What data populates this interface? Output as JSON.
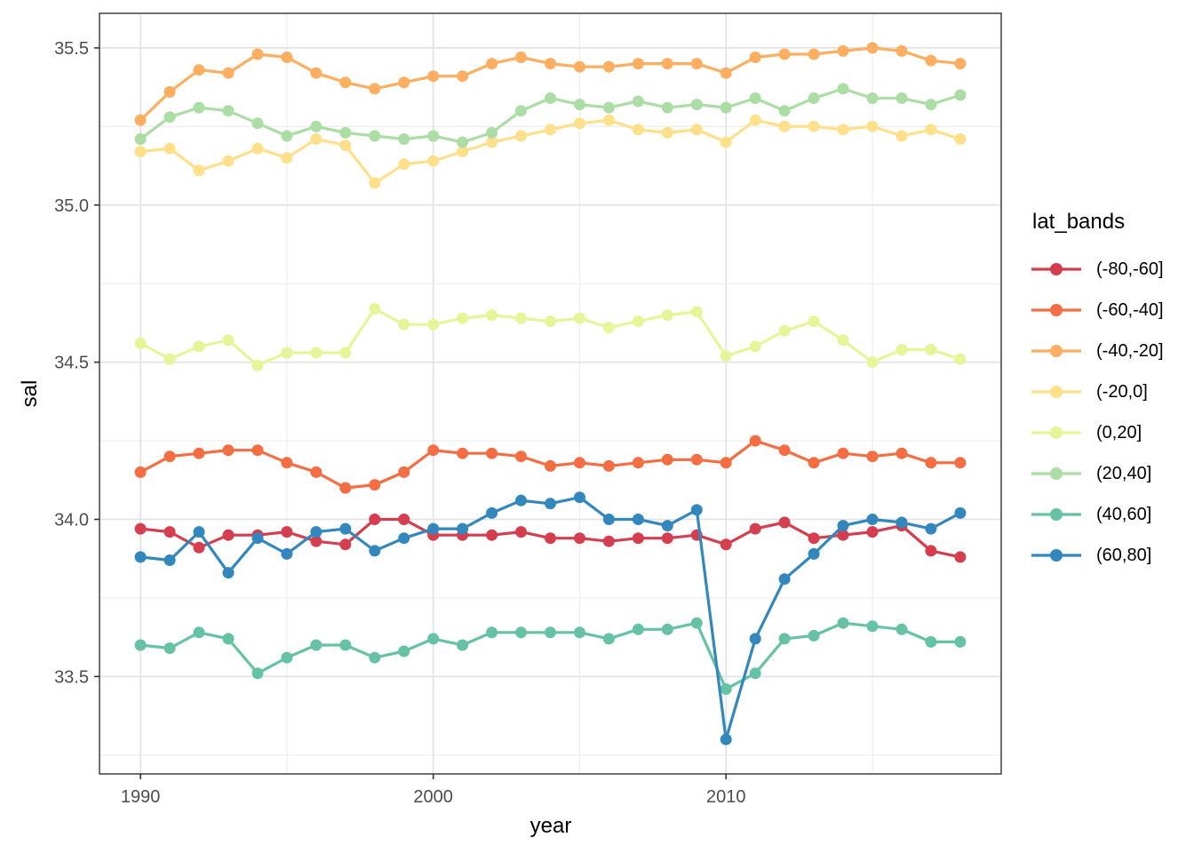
{
  "figure": {
    "background": "#ffffff"
  },
  "chart_data": {
    "type": "line",
    "title": "",
    "xlabel": "year",
    "ylabel": "sal",
    "legend_title": "lat_bands",
    "legend_position": "right",
    "grid": true,
    "xlim": [
      1988.6,
      2019.4
    ],
    "ylim": [
      33.19,
      35.61
    ],
    "x_ticks": [
      {
        "value": 1990,
        "label": "1990"
      },
      {
        "value": 2000,
        "label": "2000"
      },
      {
        "value": 2010,
        "label": "2010"
      }
    ],
    "x_minor_ticks": [
      1995,
      2005,
      2015
    ],
    "y_ticks": [
      {
        "value": 33.5,
        "label": "33.5"
      },
      {
        "value": 34.0,
        "label": "34.0"
      },
      {
        "value": 34.5,
        "label": "34.5"
      },
      {
        "value": 35.0,
        "label": "35.0"
      },
      {
        "value": 35.5,
        "label": "35.5"
      }
    ],
    "y_minor_ticks": [
      33.25,
      33.75,
      34.25,
      34.75,
      35.25
    ],
    "x": [
      1990,
      1991,
      1992,
      1993,
      1994,
      1995,
      1996,
      1997,
      1998,
      1999,
      2000,
      2001,
      2002,
      2003,
      2004,
      2005,
      2006,
      2007,
      2008,
      2009,
      2010,
      2011,
      2012,
      2013,
      2014,
      2015,
      2016,
      2017,
      2018
    ],
    "series": [
      {
        "name": "(-80,-60]",
        "color": "#D53E4F",
        "values": [
          33.97,
          33.96,
          33.91,
          33.95,
          33.95,
          33.96,
          33.93,
          33.92,
          34.0,
          34.0,
          33.95,
          33.95,
          33.95,
          33.96,
          33.94,
          33.94,
          33.93,
          33.94,
          33.94,
          33.95,
          33.92,
          33.97,
          33.99,
          33.94,
          33.95,
          33.96,
          33.98,
          33.9,
          33.88
        ]
      },
      {
        "name": "(-60,-40]",
        "color": "#F46D43",
        "values": [
          34.15,
          34.2,
          34.21,
          34.22,
          34.22,
          34.18,
          34.15,
          34.1,
          34.11,
          34.15,
          34.22,
          34.21,
          34.21,
          34.2,
          34.17,
          34.18,
          34.17,
          34.18,
          34.19,
          34.19,
          34.18,
          34.25,
          34.22,
          34.18,
          34.21,
          34.2,
          34.21,
          34.18,
          34.18
        ]
      },
      {
        "name": "(-40,-20]",
        "color": "#FDAE61",
        "values": [
          35.27,
          35.36,
          35.43,
          35.42,
          35.48,
          35.47,
          35.42,
          35.39,
          35.37,
          35.39,
          35.41,
          35.41,
          35.45,
          35.47,
          35.45,
          35.44,
          35.44,
          35.45,
          35.45,
          35.45,
          35.42,
          35.47,
          35.48,
          35.48,
          35.49,
          35.5,
          35.49,
          35.46,
          35.45
        ]
      },
      {
        "name": "(-20,0]",
        "color": "#FEE08B",
        "values": [
          35.17,
          35.18,
          35.11,
          35.14,
          35.18,
          35.15,
          35.21,
          35.19,
          35.07,
          35.13,
          35.14,
          35.17,
          35.2,
          35.22,
          35.24,
          35.26,
          35.27,
          35.24,
          35.23,
          35.24,
          35.2,
          35.27,
          35.25,
          35.25,
          35.24,
          35.25,
          35.22,
          35.24,
          35.21
        ]
      },
      {
        "name": "(0,20]",
        "color": "#E6F598",
        "values": [
          34.56,
          34.51,
          34.55,
          34.57,
          34.49,
          34.53,
          34.53,
          34.53,
          34.67,
          34.62,
          34.62,
          34.64,
          34.65,
          34.64,
          34.63,
          34.64,
          34.61,
          34.63,
          34.65,
          34.66,
          34.52,
          34.55,
          34.6,
          34.63,
          34.57,
          34.5,
          34.54,
          34.54,
          34.51
        ]
      },
      {
        "name": "(20,40]",
        "color": "#ABDDA4",
        "values": [
          35.21,
          35.28,
          35.31,
          35.3,
          35.26,
          35.22,
          35.25,
          35.23,
          35.22,
          35.21,
          35.22,
          35.2,
          35.23,
          35.3,
          35.34,
          35.32,
          35.31,
          35.33,
          35.31,
          35.32,
          35.31,
          35.34,
          35.3,
          35.34,
          35.37,
          35.34,
          35.34,
          35.32,
          35.35
        ]
      },
      {
        "name": "(40,60]",
        "color": "#66C2A5",
        "values": [
          33.6,
          33.59,
          33.64,
          33.62,
          33.51,
          33.56,
          33.6,
          33.6,
          33.56,
          33.58,
          33.62,
          33.6,
          33.64,
          33.64,
          33.64,
          33.64,
          33.62,
          33.65,
          33.65,
          33.67,
          33.46,
          33.51,
          33.62,
          33.63,
          33.67,
          33.66,
          33.65,
          33.61,
          33.61
        ]
      },
      {
        "name": "(60,80]",
        "color": "#3288BD",
        "values": [
          33.88,
          33.87,
          33.96,
          33.83,
          33.94,
          33.89,
          33.96,
          33.97,
          33.9,
          33.94,
          33.97,
          33.97,
          34.02,
          34.06,
          34.05,
          34.07,
          34.0,
          34.0,
          33.98,
          34.03,
          33.3,
          33.62,
          33.81,
          33.89,
          33.98,
          34.0,
          33.99,
          33.97,
          34.02
        ]
      }
    ],
    "theme": {
      "panel_background": "#ffffff",
      "panel_border": "#333333",
      "grid_major": "#e3e3e3",
      "grid_minor": "#eeeeee",
      "tick_color": "#333333",
      "tick_label_color": "#4d4d4d",
      "title_color": "#000000",
      "line_width": 3.2,
      "point_radius": 6.5
    }
  }
}
